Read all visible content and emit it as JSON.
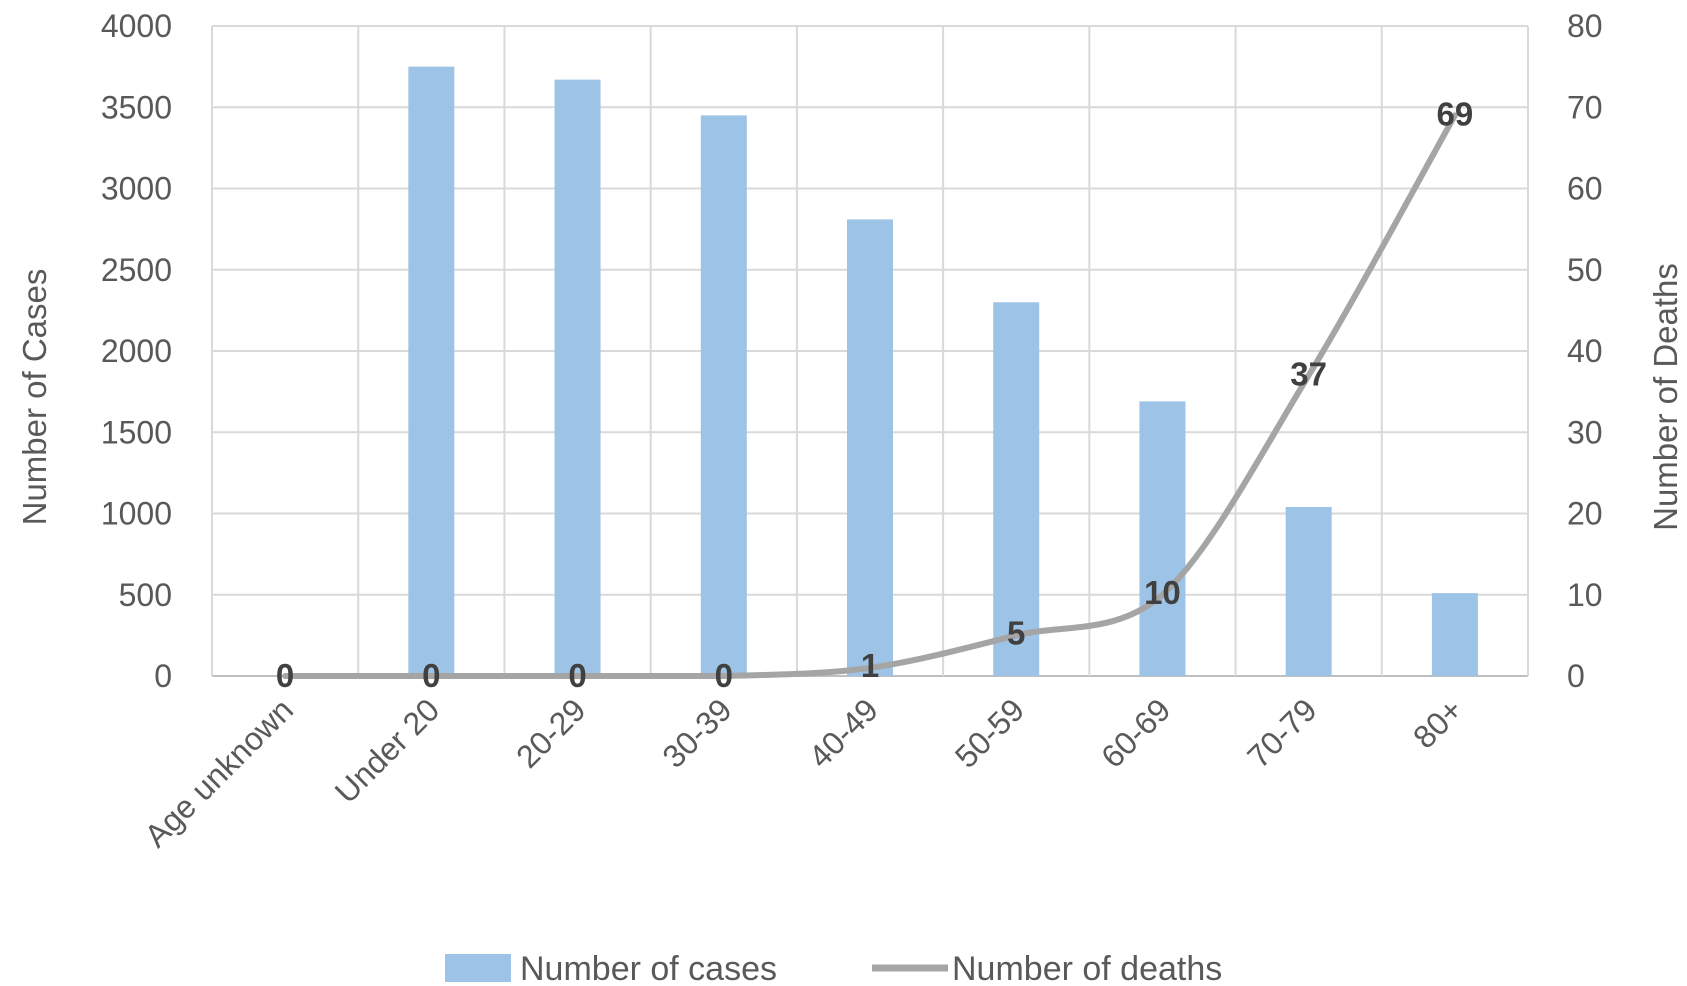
{
  "chart_data": {
    "type": "bar",
    "categories": [
      "Age unknown",
      "Under 20",
      "20-29",
      "30-39",
      "40-49",
      "50-59",
      "60-69",
      "70-79",
      "80+"
    ],
    "series": [
      {
        "name": "Number of cases",
        "type": "bar",
        "axis": "left",
        "color": "#9dc3e6",
        "values": [
          0,
          3750,
          3670,
          3450,
          2810,
          2300,
          1690,
          1040,
          510
        ]
      },
      {
        "name": "Number of deaths",
        "type": "line",
        "axis": "right",
        "color": "#a5a5a5",
        "values": [
          0,
          0,
          0,
          0,
          1,
          5,
          10,
          37,
          69
        ],
        "data_labels": [
          "0",
          "0",
          "0",
          "0",
          "1",
          "5",
          "10",
          "37",
          "69"
        ]
      }
    ],
    "ylabel": "Number of Cases",
    "y2label": "Number of Deaths",
    "ylim": [
      0,
      4000
    ],
    "y2lim": [
      0,
      80
    ],
    "yticks": [
      "0",
      "500",
      "1000",
      "1500",
      "2000",
      "2500",
      "3000",
      "3500",
      "4000"
    ],
    "y2ticks": [
      "0",
      "10",
      "20",
      "30",
      "40",
      "50",
      "60",
      "70",
      "80"
    ],
    "grid": true,
    "legend_position": "bottom"
  }
}
